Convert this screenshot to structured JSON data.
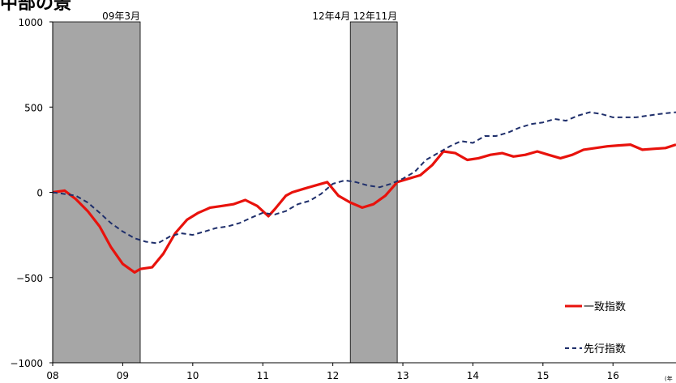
{
  "title": "中部の景",
  "footnote": "(年",
  "colors": {
    "coincident": "#e8120c",
    "leading": "#1f2f6b",
    "recession": "#a6a6a6",
    "axis": "#000000"
  },
  "chart_data": {
    "type": "line",
    "ylim": [
      -1000,
      1000
    ],
    "yticks": [
      -1000,
      -500,
      0,
      500,
      1000
    ],
    "ytick_labels": [
      "−1000",
      "−500",
      "0",
      "500",
      "1000"
    ],
    "xlim": [
      2008,
      2016.9
    ],
    "xticks": [
      2008,
      2009,
      2010,
      2011,
      2012,
      2013,
      2014,
      2015,
      2016
    ],
    "xtick_labels": [
      "08",
      "09",
      "10",
      "11",
      "12",
      "13",
      "14",
      "15",
      "16"
    ],
    "shaded_periods": [
      [
        2008.0,
        2009.25
      ],
      [
        2012.25,
        2012.92
      ]
    ],
    "annotations": [
      {
        "x": 2009.25,
        "text": "09年3月"
      },
      {
        "x": 2012.25,
        "text": "12年4月"
      },
      {
        "x": 2012.92,
        "text": "12年11月"
      }
    ],
    "legend_position": "bottom-right",
    "series": [
      {
        "name": "一致指数",
        "style": "solid",
        "color": "#e8120c",
        "x": [
          2008.0,
          2008.17,
          2008.33,
          2008.5,
          2008.67,
          2008.83,
          2009.0,
          2009.17,
          2009.25,
          2009.42,
          2009.58,
          2009.75,
          2009.92,
          2010.08,
          2010.25,
          2010.42,
          2010.58,
          2010.75,
          2010.92,
          2011.08,
          2011.17,
          2011.25,
          2011.33,
          2011.42,
          2011.58,
          2011.75,
          2011.92,
          2012.08,
          2012.25,
          2012.42,
          2012.58,
          2012.75,
          2012.92,
          2013.08,
          2013.25,
          2013.42,
          2013.58,
          2013.75,
          2013.92,
          2014.08,
          2014.25,
          2014.42,
          2014.58,
          2014.75,
          2014.92,
          2015.08,
          2015.25,
          2015.42,
          2015.58,
          2015.75,
          2015.92,
          2016.08,
          2016.25,
          2016.42,
          2016.58,
          2016.75,
          2016.9
        ],
        "y": [
          0,
          10,
          -40,
          -110,
          -200,
          -320,
          -420,
          -470,
          -450,
          -440,
          -360,
          -240,
          -160,
          -120,
          -90,
          -80,
          -70,
          -45,
          -80,
          -140,
          -100,
          -60,
          -20,
          0,
          20,
          40,
          60,
          -20,
          -60,
          -90,
          -70,
          -20,
          60,
          80,
          100,
          160,
          240,
          230,
          190,
          200,
          220,
          230,
          210,
          220,
          240,
          220,
          200,
          220,
          250,
          260,
          270,
          275,
          280,
          250,
          255,
          260,
          280
        ]
      },
      {
        "name": "先行指数",
        "style": "dashed",
        "color": "#1f2f6b",
        "x": [
          2008.0,
          2008.17,
          2008.33,
          2008.5,
          2008.67,
          2008.83,
          2009.0,
          2009.17,
          2009.33,
          2009.5,
          2009.67,
          2009.83,
          2010.0,
          2010.17,
          2010.33,
          2010.5,
          2010.67,
          2010.83,
          2011.0,
          2011.17,
          2011.33,
          2011.5,
          2011.67,
          2011.83,
          2012.0,
          2012.17,
          2012.33,
          2012.5,
          2012.67,
          2012.83,
          2013.0,
          2013.17,
          2013.33,
          2013.5,
          2013.67,
          2013.83,
          2014.0,
          2014.17,
          2014.33,
          2014.5,
          2014.67,
          2014.83,
          2015.0,
          2015.17,
          2015.33,
          2015.5,
          2015.67,
          2015.83,
          2016.0,
          2016.17,
          2016.33,
          2016.5,
          2016.67,
          2016.9
        ],
        "y": [
          0,
          -10,
          -20,
          -60,
          -120,
          -180,
          -230,
          -270,
          -290,
          -300,
          -260,
          -240,
          -250,
          -230,
          -210,
          -200,
          -180,
          -150,
          -120,
          -130,
          -110,
          -70,
          -50,
          -10,
          50,
          70,
          60,
          40,
          30,
          50,
          80,
          120,
          190,
          230,
          270,
          300,
          290,
          330,
          330,
          350,
          380,
          400,
          410,
          430,
          420,
          450,
          470,
          460,
          440,
          440,
          440,
          450,
          460,
          470
        ]
      }
    ]
  }
}
